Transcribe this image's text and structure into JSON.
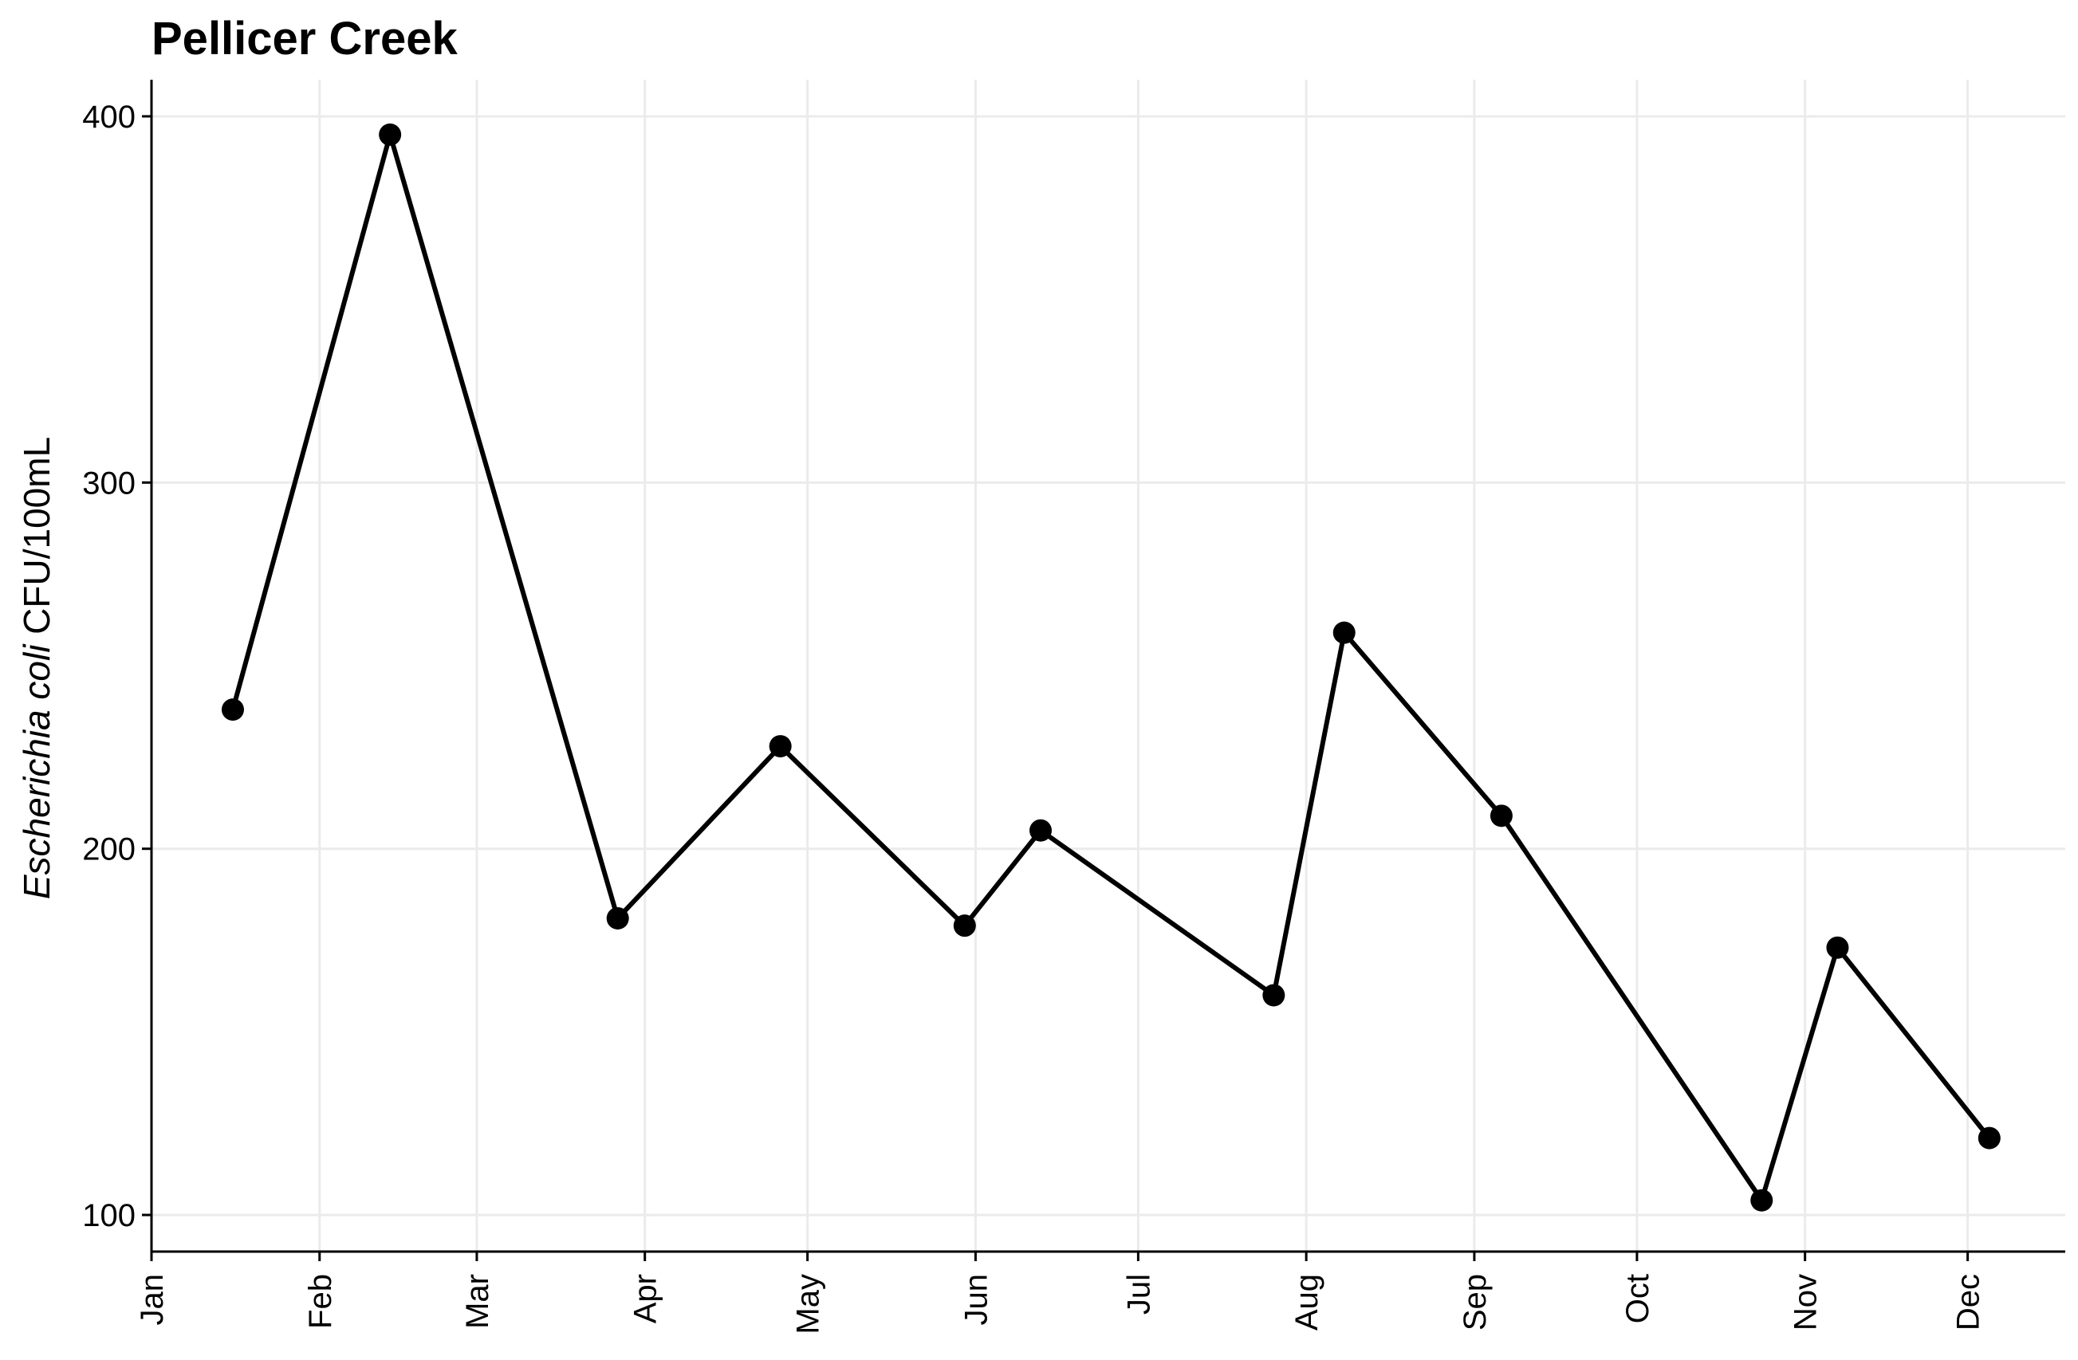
{
  "chart_data": {
    "type": "line",
    "title": "Pellicer Creek",
    "ylabel": {
      "italic": "Escherichia coli",
      "rest": " CFU/100mL"
    },
    "xlabel": "",
    "x_ticks": [
      {
        "label": "Jan",
        "date": "2000-01-01"
      },
      {
        "label": "Feb",
        "date": "2000-02-01"
      },
      {
        "label": "Mar",
        "date": "2000-03-01"
      },
      {
        "label": "Apr",
        "date": "2000-04-01"
      },
      {
        "label": "May",
        "date": "2000-05-01"
      },
      {
        "label": "Jun",
        "date": "2000-06-01"
      },
      {
        "label": "Jul",
        "date": "2000-07-01"
      },
      {
        "label": "Aug",
        "date": "2000-08-01"
      },
      {
        "label": "Sep",
        "date": "2000-09-01"
      },
      {
        "label": "Oct",
        "date": "2000-10-01"
      },
      {
        "label": "Nov",
        "date": "2000-11-01"
      },
      {
        "label": "Dec",
        "date": "2000-12-01"
      }
    ],
    "xlim": [
      "2000-01-01",
      "2000-12-19"
    ],
    "y_ticks": [
      100,
      200,
      300,
      400
    ],
    "ylim": [
      90,
      410
    ],
    "grid": true,
    "points": [
      {
        "date": "2000-01-16",
        "value": 238
      },
      {
        "date": "2000-02-14",
        "value": 395
      },
      {
        "date": "2000-03-27",
        "value": 181
      },
      {
        "date": "2000-04-26",
        "value": 228
      },
      {
        "date": "2000-05-30",
        "value": 179
      },
      {
        "date": "2000-06-13",
        "value": 205
      },
      {
        "date": "2000-07-26",
        "value": 160
      },
      {
        "date": "2000-08-08",
        "value": 259
      },
      {
        "date": "2000-09-06",
        "value": 209
      },
      {
        "date": "2000-10-24",
        "value": 104
      },
      {
        "date": "2000-11-07",
        "value": 173
      },
      {
        "date": "2000-12-05",
        "value": 121
      }
    ],
    "colors": {
      "series": "#000000",
      "grid": "#ebebeb"
    }
  }
}
